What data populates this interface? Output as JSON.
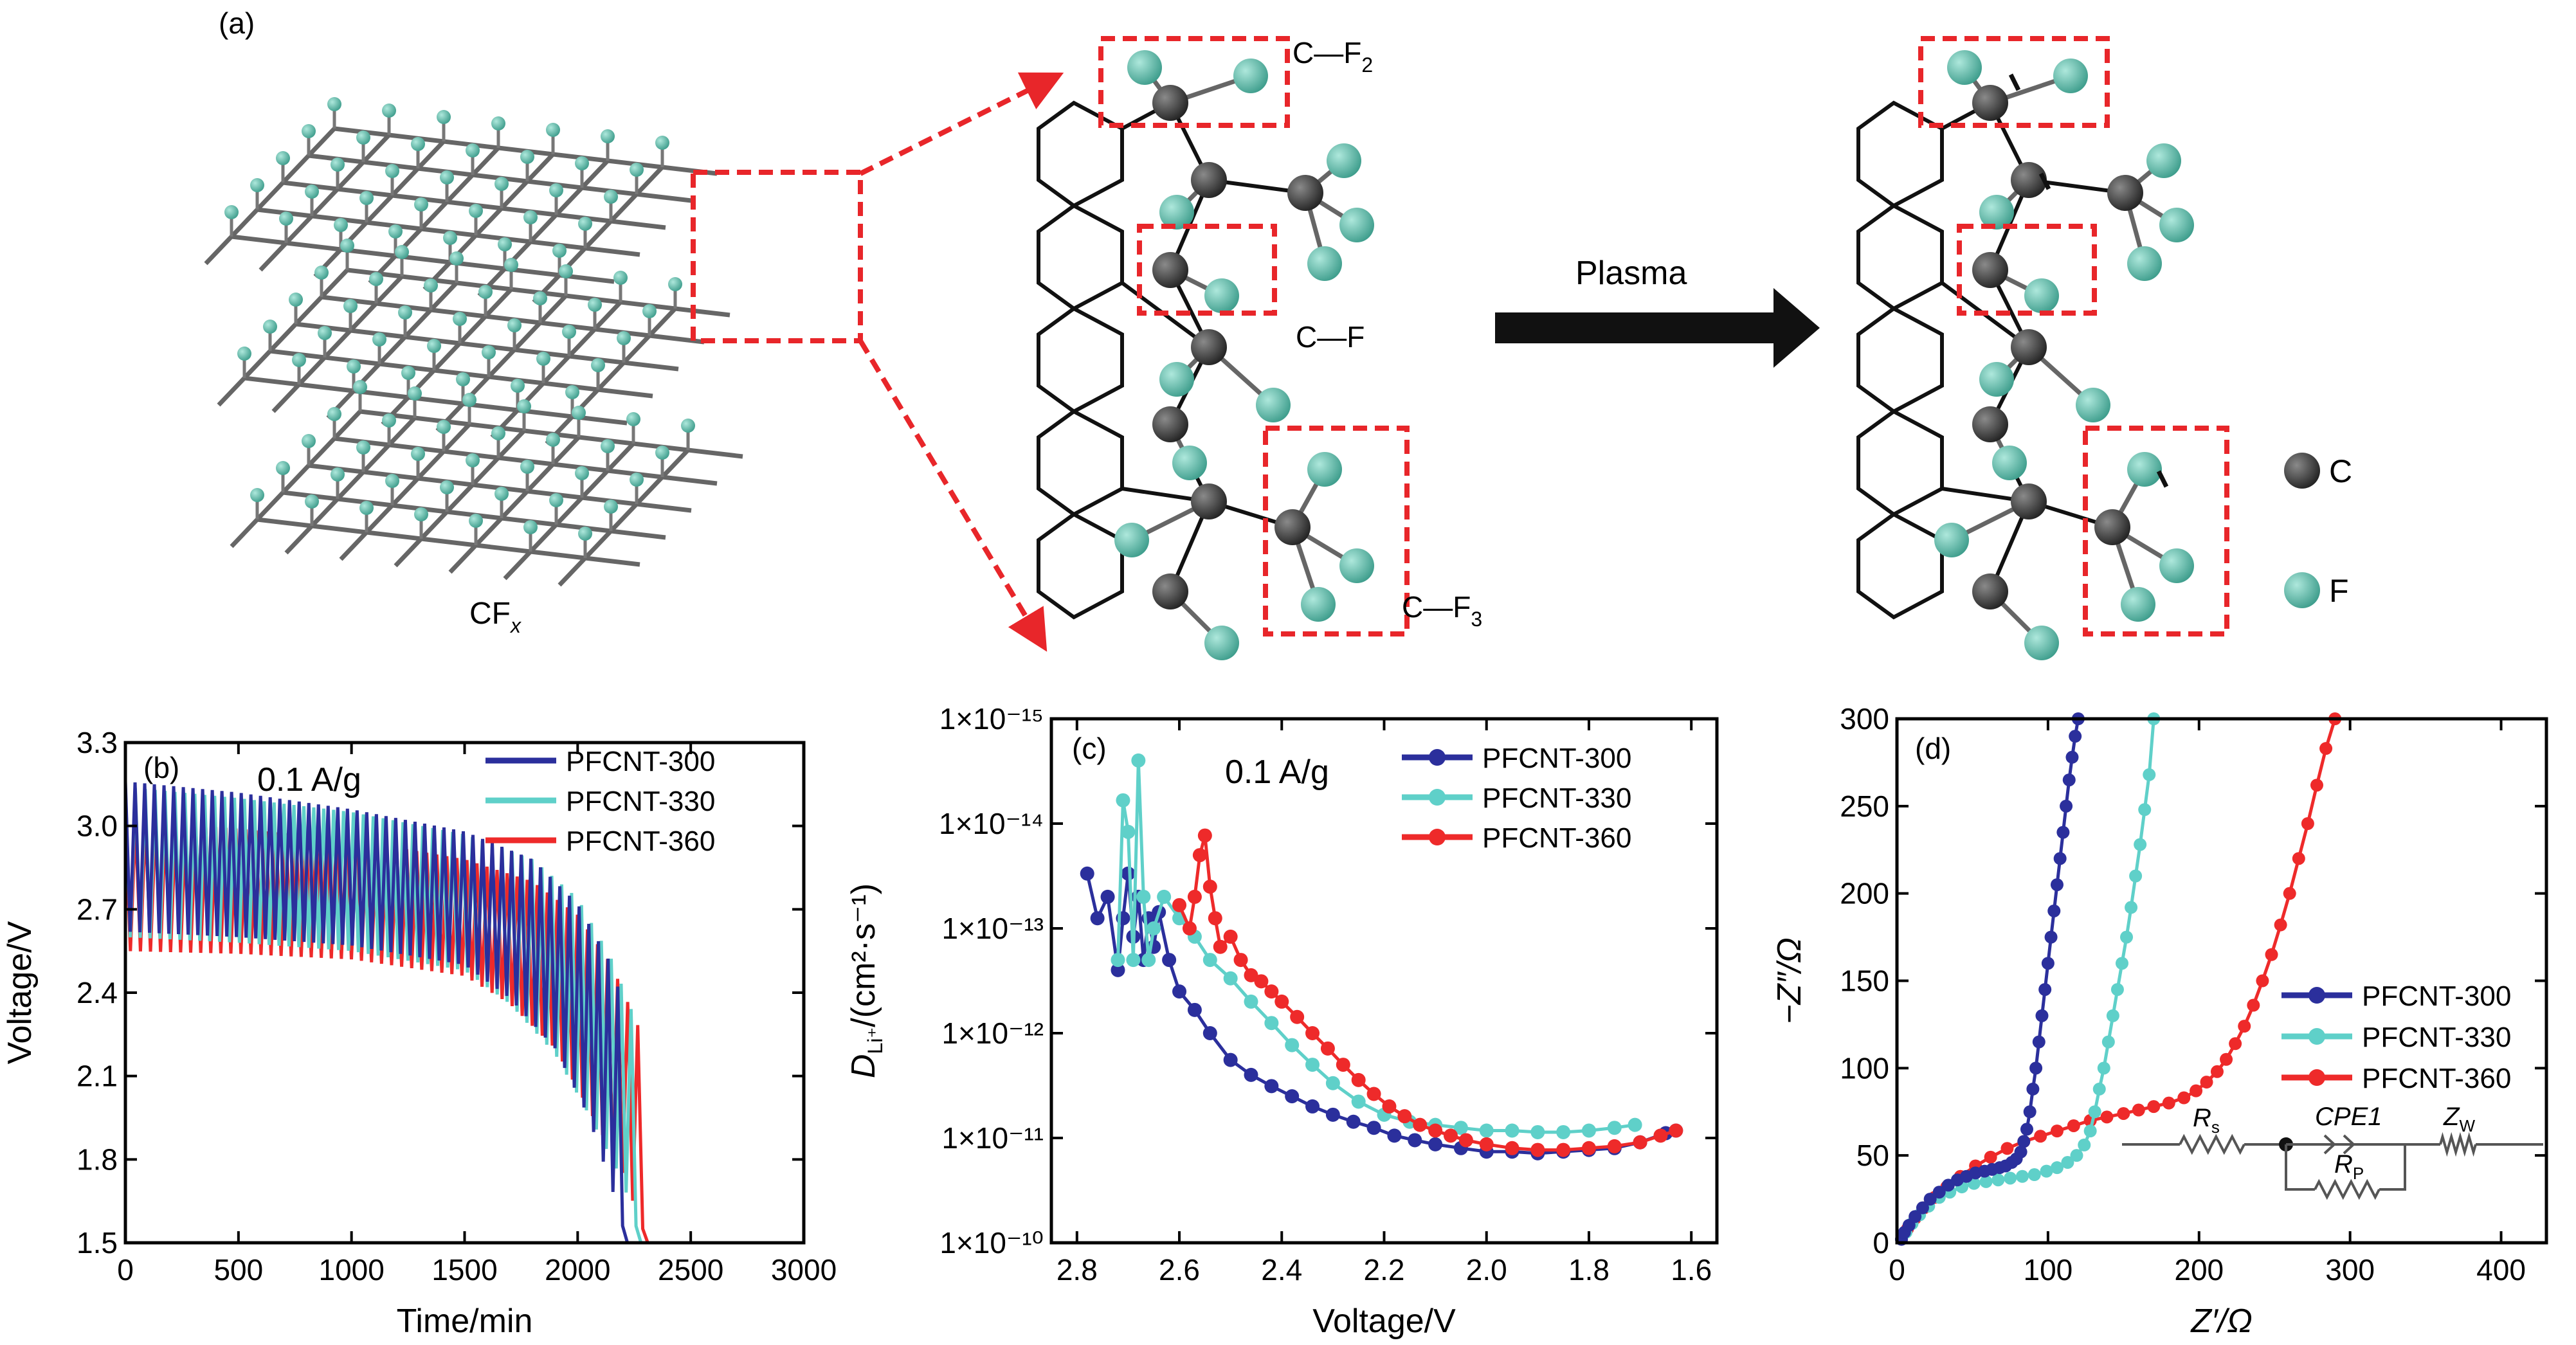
{
  "colors": {
    "pfcnt300": "#2b2f9c",
    "pfcnt330": "#5fd0c9",
    "pfcnt360": "#ee2a2a",
    "carbon": "#3a3a3a",
    "fluorine": "#5cbfac",
    "box": "#e8262a",
    "bond": "#555555"
  },
  "panel_a": {
    "label": "(a)",
    "cfx_label": "CF",
    "cfx_sub": "x",
    "cf2_label": "C—F",
    "cf2_sub": "2",
    "cf_label": "C—F",
    "cf3_label": "C—F",
    "cf3_sub": "3",
    "arrow_label": "Plasma",
    "legend_c": "C",
    "legend_f": "F"
  },
  "chart_data": [
    {
      "id": "b",
      "type": "line",
      "panel_label": "(b)",
      "annotation": "0.1 A/g",
      "xlabel": "Time/min",
      "ylabel": "Voltage/V",
      "xlim": [
        0,
        3000
      ],
      "ylim": [
        1.5,
        3.3
      ],
      "xticks": [
        0,
        500,
        1000,
        1500,
        2000,
        2500,
        3000
      ],
      "yticks": [
        1.5,
        1.8,
        2.1,
        2.4,
        2.7,
        3.0,
        3.3
      ],
      "legend": "top-right",
      "series": [
        {
          "name": "PFCNT-300",
          "color_key": "pfcnt300",
          "pulses": 52,
          "t_end": 2220,
          "upper": [
            [
              0,
              3.16
            ],
            [
              500,
              3.12
            ],
            [
              1000,
              3.06
            ],
            [
              1500,
              2.98
            ],
            [
              1800,
              2.88
            ],
            [
              2000,
              2.72
            ],
            [
              2150,
              2.5
            ],
            [
              2220,
              2.3
            ]
          ],
          "lower": [
            [
              0,
              2.62
            ],
            [
              500,
              2.6
            ],
            [
              1000,
              2.57
            ],
            [
              1500,
              2.5
            ],
            [
              1700,
              2.38
            ],
            [
              1900,
              2.2
            ],
            [
              2050,
              1.95
            ],
            [
              2150,
              1.7
            ],
            [
              2220,
              1.5
            ]
          ]
        },
        {
          "name": "PFCNT-330",
          "color_key": "pfcnt330",
          "pulses": 52,
          "t_end": 2280,
          "upper": [
            [
              0,
              3.14
            ],
            [
              500,
              3.1
            ],
            [
              1000,
              3.05
            ],
            [
              1500,
              2.97
            ],
            [
              1800,
              2.88
            ],
            [
              2000,
              2.74
            ],
            [
              2150,
              2.52
            ],
            [
              2280,
              2.25
            ]
          ],
          "lower": [
            [
              0,
              2.6
            ],
            [
              500,
              2.58
            ],
            [
              1000,
              2.55
            ],
            [
              1500,
              2.48
            ],
            [
              1700,
              2.36
            ],
            [
              1900,
              2.18
            ],
            [
              2050,
              1.96
            ],
            [
              2200,
              1.72
            ],
            [
              2280,
              1.5
            ]
          ]
        },
        {
          "name": "PFCNT-360",
          "color_key": "pfcnt360",
          "pulses": 52,
          "t_end": 2310,
          "upper": [
            [
              0,
              3.02
            ],
            [
              500,
              2.99
            ],
            [
              1000,
              2.95
            ],
            [
              1500,
              2.88
            ],
            [
              1800,
              2.8
            ],
            [
              2000,
              2.68
            ],
            [
              2150,
              2.5
            ],
            [
              2310,
              2.2
            ]
          ],
          "lower": [
            [
              0,
              2.55
            ],
            [
              500,
              2.54
            ],
            [
              1000,
              2.52
            ],
            [
              1500,
              2.46
            ],
            [
              1700,
              2.36
            ],
            [
              1900,
              2.2
            ],
            [
              2050,
              1.98
            ],
            [
              2200,
              1.75
            ],
            [
              2310,
              1.5
            ]
          ]
        }
      ]
    },
    {
      "id": "c",
      "type": "line",
      "panel_label": "(c)",
      "annotation": "0.1 A/g",
      "xlabel": "Voltage/V",
      "ylabel": "D",
      "ylabel_sub": "Li⁺",
      "ylabel_tail": "/(cm²·s⁻¹)",
      "xlim": [
        2.85,
        1.55
      ],
      "x_reversed": true,
      "y_log": true,
      "ylim": [
        1e-10,
        1e-15
      ],
      "y_reversed": true,
      "xticks": [
        2.8,
        2.6,
        2.4,
        2.2,
        2.0,
        1.8,
        1.6
      ],
      "xtick_labels": [
        "2.8",
        "2.6",
        "2.4",
        "2.2",
        "2.0",
        "1.8",
        "1.6"
      ],
      "yticks": [
        1e-15,
        1e-14,
        1e-13,
        1e-12,
        1e-11,
        1e-10
      ],
      "ytick_labels": [
        "1×10⁻¹⁵",
        "1×10⁻¹⁴",
        "1×10⁻¹³",
        "1×10⁻¹²",
        "1×10⁻¹¹",
        "1×10⁻¹⁰"
      ],
      "legend": "top-right",
      "series": [
        {
          "name": "PFCNT-300",
          "color_key": "pfcnt300",
          "x": [
            2.78,
            2.76,
            2.74,
            2.72,
            2.71,
            2.7,
            2.69,
            2.68,
            2.67,
            2.66,
            2.65,
            2.64,
            2.62,
            2.6,
            2.57,
            2.54,
            2.5,
            2.46,
            2.42,
            2.38,
            2.34,
            2.3,
            2.26,
            2.22,
            2.18,
            2.14,
            2.1,
            2.05,
            2.0,
            1.95,
            1.9,
            1.85,
            1.8,
            1.75,
            1.7,
            1.65,
            1.63
          ],
          "y": [
            3e-14,
            8e-14,
            5e-14,
            2.5e-13,
            8e-14,
            3e-14,
            1.2e-13,
            5e-14,
            2e-13,
            8e-14,
            1.5e-13,
            7e-14,
            2e-13,
            4e-13,
            6e-13,
            1e-12,
            1.8e-12,
            2.5e-12,
            3.2e-12,
            4e-12,
            5e-12,
            6e-12,
            7e-12,
            8e-12,
            9.5e-12,
            1.05e-11,
            1.15e-11,
            1.25e-11,
            1.35e-11,
            1.35e-11,
            1.4e-11,
            1.35e-11,
            1.3e-11,
            1.25e-11,
            1.1e-11,
            9e-12,
            8.5e-12
          ]
        },
        {
          "name": "PFCNT-330",
          "color_key": "pfcnt330",
          "x": [
            2.72,
            2.71,
            2.7,
            2.69,
            2.68,
            2.67,
            2.66,
            2.65,
            2.63,
            2.6,
            2.57,
            2.54,
            2.5,
            2.46,
            2.42,
            2.38,
            2.34,
            2.3,
            2.25,
            2.2,
            2.15,
            2.1,
            2.05,
            2.0,
            1.95,
            1.9,
            1.85,
            1.8,
            1.75,
            1.71
          ],
          "y": [
            2e-13,
            6e-15,
            1.2e-14,
            2e-13,
            2.5e-15,
            5e-14,
            2e-13,
            1e-13,
            5e-14,
            8e-14,
            1.2e-13,
            2e-13,
            3e-13,
            5e-13,
            8e-13,
            1.3e-12,
            2e-12,
            3e-12,
            4.5e-12,
            6e-12,
            7e-12,
            7.5e-12,
            8e-12,
            8.5e-12,
            8.5e-12,
            8.8e-12,
            8.8e-12,
            8.5e-12,
            8e-12,
            7.5e-12
          ]
        },
        {
          "name": "PFCNT-360",
          "color_key": "pfcnt360",
          "x": [
            2.6,
            2.58,
            2.57,
            2.56,
            2.55,
            2.54,
            2.53,
            2.52,
            2.5,
            2.48,
            2.46,
            2.44,
            2.42,
            2.4,
            2.37,
            2.34,
            2.31,
            2.28,
            2.25,
            2.22,
            2.19,
            2.16,
            2.13,
            2.1,
            2.07,
            2.04,
            2.0,
            1.95,
            1.9,
            1.85,
            1.8,
            1.75,
            1.7,
            1.66,
            1.63
          ],
          "y": [
            6e-14,
            1e-13,
            5e-14,
            2e-14,
            1.3e-14,
            4e-14,
            8e-14,
            1.5e-13,
            1.2e-13,
            2e-13,
            2.8e-13,
            3.2e-13,
            4e-13,
            5e-13,
            7e-13,
            1e-12,
            1.4e-12,
            2e-12,
            2.8e-12,
            3.8e-12,
            5e-12,
            6.2e-12,
            7.5e-12,
            8.5e-12,
            9.5e-12,
            1.05e-11,
            1.15e-11,
            1.25e-11,
            1.3e-11,
            1.3e-11,
            1.25e-11,
            1.2e-11,
            1.1e-11,
            9.5e-12,
            8.5e-12
          ]
        }
      ]
    },
    {
      "id": "d",
      "type": "line",
      "panel_label": "(d)",
      "xlabel": "Z′/Ω",
      "ylabel": "−Z″/Ω",
      "xlim": [
        0,
        430
      ],
      "ylim": [
        0,
        300
      ],
      "xticks": [
        0,
        100,
        200,
        300,
        400
      ],
      "yticks": [
        0,
        50,
        100,
        150,
        200,
        250,
        300
      ],
      "legend": "center-right",
      "series": [
        {
          "name": "PFCNT-300",
          "color_key": "pfcnt300",
          "x": [
            3,
            5,
            8,
            12,
            17,
            22,
            28,
            34,
            40,
            46,
            52,
            58,
            63,
            68,
            72,
            76,
            79,
            82,
            84,
            86,
            88,
            90,
            92,
            94,
            96,
            98,
            100,
            102,
            104,
            106,
            108,
            110,
            112,
            114,
            116,
            118,
            120
          ],
          "y": [
            2,
            6,
            10,
            15,
            20,
            25,
            29,
            33,
            36,
            38,
            40,
            41,
            42,
            43,
            44,
            46,
            48,
            52,
            58,
            65,
            75,
            88,
            100,
            115,
            130,
            145,
            160,
            175,
            190,
            205,
            220,
            235,
            250,
            265,
            278,
            290,
            300
          ]
        },
        {
          "name": "PFCNT-330",
          "color_key": "pfcnt330",
          "x": [
            3,
            6,
            10,
            15,
            21,
            28,
            35,
            43,
            51,
            59,
            67,
            75,
            83,
            91,
            99,
            106,
            113,
            119,
            124,
            128,
            131,
            134,
            137,
            140,
            143,
            146,
            149,
            152,
            155,
            158,
            161,
            164,
            167,
            170
          ],
          "y": [
            2,
            6,
            11,
            16,
            21,
            26,
            29,
            32,
            34,
            35,
            36,
            37,
            38,
            39,
            41,
            43,
            46,
            50,
            56,
            64,
            75,
            88,
            100,
            115,
            130,
            145,
            160,
            175,
            192,
            210,
            228,
            248,
            268,
            300
          ]
        },
        {
          "name": "PFCNT-360",
          "color_key": "pfcnt360",
          "x": [
            3,
            7,
            12,
            18,
            25,
            33,
            42,
            52,
            62,
            73,
            84,
            95,
            106,
            117,
            128,
            139,
            150,
            160,
            170,
            180,
            190,
            198,
            205,
            212,
            218,
            224,
            230,
            236,
            242,
            248,
            254,
            260,
            266,
            272,
            278,
            284,
            290
          ],
          "y": [
            2,
            8,
            14,
            20,
            26,
            32,
            38,
            44,
            49,
            54,
            58,
            61,
            64,
            67,
            70,
            72,
            74,
            76,
            78,
            80,
            83,
            87,
            92,
            98,
            105,
            114,
            124,
            136,
            150,
            165,
            182,
            200,
            220,
            240,
            262,
            283,
            300
          ]
        }
      ],
      "circuit": {
        "rs": "R",
        "rs_sub": "s",
        "cpe": "CPE1",
        "rp": "R",
        "rp_sub": "P",
        "zw": "Z",
        "zw_sub": "W"
      }
    }
  ]
}
